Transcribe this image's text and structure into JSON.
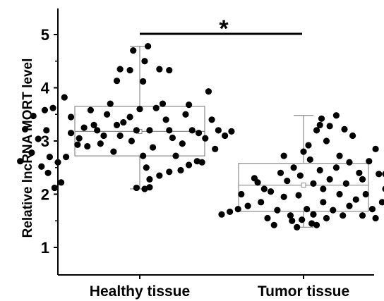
{
  "chart_data": {
    "type": "box-scatter",
    "title": "",
    "xlabel": "",
    "ylabel": "Relative lncRNA MORT level",
    "ylim": [
      0.5,
      5.4
    ],
    "yticks": [
      "1",
      "2",
      "3",
      "4",
      "5"
    ],
    "categories": [
      "Healthy tissue",
      "Tumor tissue"
    ],
    "significance": "*",
    "groups": [
      {
        "name": "Healthy tissue",
        "box": {
          "q1": 2.72,
          "median": 3.18,
          "q3": 3.65,
          "mean": 3.18,
          "whisker_low": 2.1,
          "whisker_high": 4.78
        },
        "points": [
          [
            0.35,
            3.47
          ],
          [
            0.3,
            3.22
          ],
          [
            0.27,
            2.62
          ],
          [
            0.34,
            2.78
          ],
          [
            0.38,
            3.04
          ],
          [
            0.43,
            3.2
          ],
          [
            0.42,
            3.58
          ],
          [
            0.47,
            3.62
          ],
          [
            0.45,
            2.7
          ],
          [
            0.4,
            2.52
          ],
          [
            0.44,
            2.4
          ],
          [
            0.48,
            2.12
          ],
          [
            0.52,
            2.22
          ],
          [
            0.5,
            2.6
          ],
          [
            0.55,
            2.7
          ],
          [
            0.58,
            3.45
          ],
          [
            0.54,
            3.82
          ],
          [
            0.58,
            3.15
          ],
          [
            0.63,
            3.05
          ],
          [
            0.62,
            2.93
          ],
          [
            0.66,
            3.25
          ],
          [
            0.7,
            3.58
          ],
          [
            0.72,
            3.3
          ],
          [
            0.74,
            3.2
          ],
          [
            0.68,
            2.9
          ],
          [
            0.76,
            2.95
          ],
          [
            0.8,
            3.5
          ],
          [
            0.82,
            3.7
          ],
          [
            0.78,
            3.1
          ],
          [
            0.86,
            3.3
          ],
          [
            0.84,
            2.8
          ],
          [
            0.88,
            3.1
          ],
          [
            0.9,
            3.35
          ],
          [
            0.94,
            3.45
          ],
          [
            0.95,
            3.0
          ],
          [
            0.98,
            3.2
          ],
          [
            1.0,
            3.6
          ],
          [
            1.02,
            2.72
          ],
          [
            1.04,
            2.5
          ],
          [
            1.06,
            3.2
          ],
          [
            1.08,
            2.88
          ],
          [
            1.1,
            3.62
          ],
          [
            1.14,
            3.7
          ],
          [
            1.16,
            3.4
          ],
          [
            1.18,
            3.2
          ],
          [
            1.2,
            3.06
          ],
          [
            1.22,
            2.72
          ],
          [
            1.26,
            2.95
          ],
          [
            1.28,
            3.5
          ],
          [
            1.3,
            3.68
          ],
          [
            1.32,
            3.2
          ],
          [
            1.36,
            3.15
          ],
          [
            1.38,
            2.6
          ],
          [
            1.4,
            3.05
          ],
          [
            1.44,
            3.4
          ],
          [
            1.48,
            3.2
          ],
          [
            1.52,
            3.1
          ],
          [
            1.56,
            3.18
          ],
          [
            1.46,
            2.85
          ],
          [
            1.35,
            2.62
          ],
          [
            1.3,
            2.55
          ],
          [
            1.25,
            2.45
          ],
          [
            1.18,
            2.42
          ],
          [
            1.12,
            2.35
          ],
          [
            1.06,
            2.28
          ],
          [
            0.88,
            4.35
          ],
          [
            0.94,
            4.33
          ],
          [
            0.86,
            4.13
          ],
          [
            1.02,
            4.12
          ],
          [
            1.12,
            4.35
          ],
          [
            1.18,
            4.33
          ],
          [
            0.96,
            4.7
          ],
          [
            1.05,
            4.78
          ],
          [
            1.03,
            4.5
          ],
          [
            1.42,
            3.93
          ],
          [
            0.98,
            2.12
          ],
          [
            1.06,
            2.13
          ],
          [
            1.03,
            2.1
          ]
        ]
      },
      {
        "name": "Tumor tissue",
        "box": {
          "q1": 1.68,
          "median": 2.17,
          "q3": 2.58,
          "mean": 2.17,
          "whisker_low": 1.38,
          "whisker_high": 3.48
        },
        "points": [
          [
            1.5,
            1.62
          ],
          [
            1.55,
            1.67
          ],
          [
            1.6,
            1.72
          ],
          [
            1.62,
            2.0
          ],
          [
            1.66,
            1.78
          ],
          [
            1.7,
            2.3
          ],
          [
            1.72,
            2.22
          ],
          [
            1.76,
            2.1
          ],
          [
            1.74,
            1.85
          ],
          [
            1.78,
            1.55
          ],
          [
            1.8,
            2.05
          ],
          [
            1.82,
            1.42
          ],
          [
            1.84,
            1.7
          ],
          [
            1.86,
            2.4
          ],
          [
            1.88,
            1.95
          ],
          [
            1.9,
            2.25
          ],
          [
            1.88,
            2.72
          ],
          [
            1.92,
            1.6
          ],
          [
            1.94,
            2.5
          ],
          [
            1.96,
            1.38
          ],
          [
            1.97,
            1.98
          ],
          [
            1.98,
            2.35
          ],
          [
            2.0,
            2.8
          ],
          [
            1.99,
            1.52
          ],
          [
            2.02,
            1.72
          ],
          [
            2.03,
            2.92
          ],
          [
            2.04,
            2.65
          ],
          [
            2.05,
            1.45
          ],
          [
            2.06,
            2.2
          ],
          [
            2.06,
            1.62
          ],
          [
            2.08,
            1.42
          ],
          [
            2.08,
            3.2
          ],
          [
            2.1,
            2.45
          ],
          [
            2.1,
            3.3
          ],
          [
            2.11,
            3.42
          ],
          [
            2.12,
            1.85
          ],
          [
            2.12,
            2.1
          ],
          [
            2.14,
            3.0
          ],
          [
            2.14,
            1.55
          ],
          [
            2.16,
            2.28
          ],
          [
            2.16,
            3.28
          ],
          [
            2.18,
            1.7
          ],
          [
            2.2,
            2.5
          ],
          [
            2.2,
            3.48
          ],
          [
            2.22,
            2.0
          ],
          [
            2.22,
            2.72
          ],
          [
            2.24,
            1.6
          ],
          [
            2.25,
            3.22
          ],
          [
            2.26,
            2.2
          ],
          [
            2.28,
            2.6
          ],
          [
            2.28,
            1.78
          ],
          [
            2.3,
            3.1
          ],
          [
            2.32,
            1.9
          ],
          [
            2.34,
            2.4
          ],
          [
            2.36,
            1.6
          ],
          [
            2.36,
            2.28
          ],
          [
            2.38,
            2.0
          ],
          [
            2.4,
            2.62
          ],
          [
            2.42,
            1.72
          ],
          [
            2.44,
            1.55
          ],
          [
            2.46,
            2.38
          ],
          [
            2.48,
            1.85
          ],
          [
            2.5,
            2.1
          ],
          [
            2.52,
            1.7
          ],
          [
            2.54,
            1.98
          ],
          [
            2.56,
            1.78
          ],
          [
            2.58,
            1.7
          ],
          [
            2.5,
            2.38
          ],
          [
            2.44,
            2.85
          ],
          [
            1.93,
            1.5
          ]
        ]
      }
    ],
    "colors": {
      "points": "#000000",
      "box": "#8a8a8a",
      "axis": "#000000"
    }
  }
}
